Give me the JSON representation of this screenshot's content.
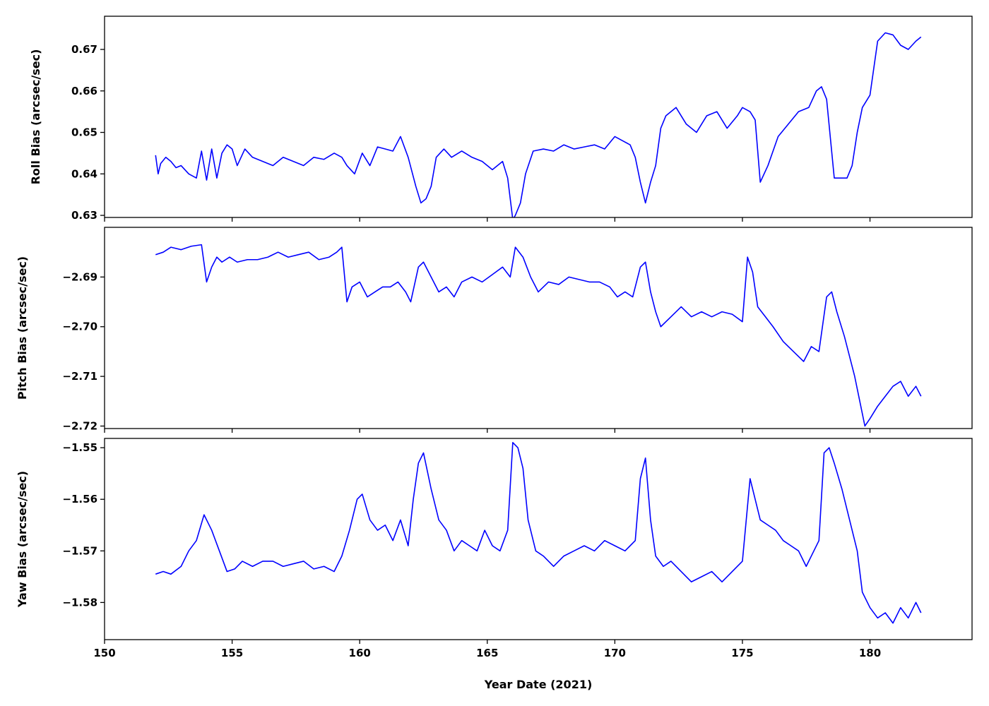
{
  "figure": {
    "xlabel": "Year Date (2021)",
    "line_color": "#0000ff"
  },
  "chart_data": [
    {
      "type": "line",
      "title": "",
      "xlabel": "",
      "ylabel": "Roll Bias (arcsec/sec)",
      "xlim": [
        150,
        184
      ],
      "ylim": [
        0.6295,
        0.678
      ],
      "xticks": [
        150,
        155,
        160,
        165,
        170,
        175,
        180
      ],
      "yticks": [
        0.63,
        0.64,
        0.65,
        0.66,
        0.67
      ],
      "ytick_labels": [
        "0.63",
        "0.64",
        "0.65",
        "0.66",
        "0.67"
      ],
      "show_xtick_labels": false,
      "grid": false,
      "series": [
        {
          "color": "#0000ff",
          "x": [
            152.0,
            152.1,
            152.2,
            152.4,
            152.6,
            152.8,
            153.0,
            153.3,
            153.6,
            153.8,
            154.0,
            154.2,
            154.4,
            154.6,
            154.8,
            155.0,
            155.2,
            155.5,
            155.8,
            156.2,
            156.6,
            157.0,
            157.4,
            157.8,
            158.2,
            158.6,
            159.0,
            159.3,
            159.5,
            159.8,
            160.1,
            160.4,
            160.7,
            161.0,
            161.3,
            161.6,
            161.9,
            162.2,
            162.4,
            162.6,
            162.8,
            163.0,
            163.3,
            163.6,
            164.0,
            164.4,
            164.8,
            165.2,
            165.6,
            165.8,
            166.0,
            166.1,
            166.3,
            166.5,
            166.8,
            167.2,
            167.6,
            168.0,
            168.4,
            168.8,
            169.2,
            169.6,
            170.0,
            170.3,
            170.6,
            170.8,
            171.0,
            171.2,
            171.4,
            171.6,
            171.8,
            172.0,
            172.4,
            172.8,
            173.2,
            173.6,
            174.0,
            174.4,
            174.8,
            175.0,
            175.3,
            175.5,
            175.7,
            176.0,
            176.4,
            176.8,
            177.2,
            177.6,
            177.9,
            178.1,
            178.3,
            178.6,
            178.9,
            179.1,
            179.3,
            179.5,
            179.7,
            180.0,
            180.3,
            180.6,
            180.9,
            181.2,
            181.5,
            181.8,
            182.0
          ],
          "y": [
            0.6445,
            0.64,
            0.6425,
            0.644,
            0.643,
            0.6415,
            0.642,
            0.64,
            0.639,
            0.6455,
            0.6385,
            0.646,
            0.639,
            0.645,
            0.647,
            0.646,
            0.642,
            0.646,
            0.644,
            0.643,
            0.642,
            0.644,
            0.643,
            0.642,
            0.644,
            0.6435,
            0.645,
            0.644,
            0.642,
            0.64,
            0.645,
            0.642,
            0.6465,
            0.646,
            0.6455,
            0.649,
            0.644,
            0.637,
            0.633,
            0.634,
            0.637,
            0.644,
            0.646,
            0.644,
            0.6455,
            0.644,
            0.643,
            0.641,
            0.643,
            0.639,
            0.629,
            0.63,
            0.633,
            0.64,
            0.6455,
            0.646,
            0.6455,
            0.647,
            0.646,
            0.6465,
            0.647,
            0.646,
            0.649,
            0.648,
            0.647,
            0.644,
            0.638,
            0.633,
            0.638,
            0.642,
            0.651,
            0.654,
            0.656,
            0.652,
            0.65,
            0.654,
            0.655,
            0.651,
            0.654,
            0.656,
            0.655,
            0.653,
            0.638,
            0.642,
            0.649,
            0.652,
            0.655,
            0.656,
            0.66,
            0.661,
            0.658,
            0.639,
            0.639,
            0.639,
            0.642,
            0.65,
            0.656,
            0.659,
            0.672,
            0.674,
            0.6735,
            0.671,
            0.67,
            0.672,
            0.673
          ]
        }
      ]
    },
    {
      "type": "line",
      "title": "",
      "xlabel": "",
      "ylabel": "Pitch Bias (arcsec/sec)",
      "xlim": [
        150,
        184
      ],
      "ylim": [
        -2.7205,
        -2.68
      ],
      "xticks": [
        150,
        155,
        160,
        165,
        170,
        175,
        180
      ],
      "yticks": [
        -2.72,
        -2.71,
        -2.7,
        -2.69
      ],
      "ytick_labels": [
        "−2.72",
        "−2.71",
        "−2.70",
        "−2.69"
      ],
      "show_xtick_labels": false,
      "grid": false,
      "series": [
        {
          "color": "#0000ff",
          "x": [
            152.0,
            152.3,
            152.6,
            153.0,
            153.4,
            153.8,
            154.0,
            154.2,
            154.4,
            154.6,
            154.9,
            155.2,
            155.6,
            156.0,
            156.4,
            156.8,
            157.2,
            157.6,
            158.0,
            158.4,
            158.8,
            159.1,
            159.3,
            159.5,
            159.7,
            160.0,
            160.3,
            160.6,
            160.9,
            161.2,
            161.5,
            161.8,
            162.0,
            162.3,
            162.5,
            162.8,
            163.1,
            163.4,
            163.7,
            164.0,
            164.4,
            164.8,
            165.2,
            165.6,
            165.9,
            166.1,
            166.4,
            166.7,
            167.0,
            167.4,
            167.8,
            168.2,
            168.6,
            169.0,
            169.4,
            169.8,
            170.1,
            170.4,
            170.7,
            171.0,
            171.2,
            171.4,
            171.6,
            171.8,
            172.2,
            172.6,
            173.0,
            173.4,
            173.8,
            174.2,
            174.6,
            175.0,
            175.2,
            175.4,
            175.6,
            175.9,
            176.2,
            176.6,
            177.0,
            177.4,
            177.7,
            178.0,
            178.3,
            178.5,
            178.7,
            179.0,
            179.2,
            179.4,
            179.6,
            179.8,
            180.0,
            180.3,
            180.6,
            180.9,
            181.2,
            181.5,
            181.8,
            182.0
          ],
          "y": [
            -2.6855,
            -2.685,
            -2.684,
            -2.6845,
            -2.6838,
            -2.6835,
            -2.691,
            -2.688,
            -2.686,
            -2.687,
            -2.686,
            -2.687,
            -2.6865,
            -2.6865,
            -2.686,
            -2.685,
            -2.686,
            -2.6855,
            -2.685,
            -2.6865,
            -2.686,
            -2.685,
            -2.684,
            -2.695,
            -2.692,
            -2.691,
            -2.694,
            -2.693,
            -2.692,
            -2.692,
            -2.691,
            -2.693,
            -2.695,
            -2.688,
            -2.687,
            -2.69,
            -2.693,
            -2.692,
            -2.694,
            -2.691,
            -2.69,
            -2.691,
            -2.6895,
            -2.688,
            -2.69,
            -2.684,
            -2.686,
            -2.69,
            -2.693,
            -2.691,
            -2.6915,
            -2.69,
            -2.6905,
            -2.691,
            -2.691,
            -2.692,
            -2.694,
            -2.693,
            -2.694,
            -2.688,
            -2.687,
            -2.693,
            -2.697,
            -2.7,
            -2.698,
            -2.696,
            -2.698,
            -2.697,
            -2.698,
            -2.697,
            -2.6975,
            -2.699,
            -2.686,
            -2.689,
            -2.696,
            -2.698,
            -2.7,
            -2.703,
            -2.705,
            -2.707,
            -2.704,
            -2.705,
            -2.694,
            -2.693,
            -2.697,
            -2.702,
            -2.706,
            -2.71,
            -2.715,
            -2.72,
            -2.7185,
            -2.716,
            -2.714,
            -2.712,
            -2.711,
            -2.714,
            -2.712,
            -2.714
          ]
        }
      ]
    },
    {
      "type": "line",
      "title": "",
      "xlabel": "Year Date (2021)",
      "ylabel": "Yaw Bias (arcsec/sec)",
      "xlim": [
        150,
        184
      ],
      "ylim": [
        -1.5872,
        -1.5482
      ],
      "xticks": [
        150,
        155,
        160,
        165,
        170,
        175,
        180
      ],
      "xtick_labels": [
        "150",
        "155",
        "160",
        "165",
        "170",
        "175",
        "180"
      ],
      "yticks": [
        -1.58,
        -1.57,
        -1.56,
        -1.55
      ],
      "ytick_labels": [
        "−1.58",
        "−1.57",
        "−1.56",
        "−1.55"
      ],
      "show_xtick_labels": true,
      "grid": false,
      "series": [
        {
          "color": "#0000ff",
          "x": [
            152.0,
            152.3,
            152.6,
            153.0,
            153.3,
            153.6,
            153.9,
            154.2,
            154.5,
            154.8,
            155.1,
            155.4,
            155.8,
            156.2,
            156.6,
            157.0,
            157.4,
            157.8,
            158.2,
            158.6,
            159.0,
            159.3,
            159.6,
            159.9,
            160.1,
            160.4,
            160.7,
            161.0,
            161.3,
            161.6,
            161.9,
            162.1,
            162.3,
            162.5,
            162.8,
            163.1,
            163.4,
            163.7,
            164.0,
            164.3,
            164.6,
            164.9,
            165.2,
            165.5,
            165.8,
            166.0,
            166.2,
            166.4,
            166.6,
            166.9,
            167.2,
            167.6,
            168.0,
            168.4,
            168.8,
            169.2,
            169.6,
            170.0,
            170.4,
            170.8,
            171.0,
            171.2,
            171.4,
            171.6,
            171.9,
            172.2,
            172.6,
            173.0,
            173.4,
            173.8,
            174.2,
            174.6,
            175.0,
            175.3,
            175.5,
            175.7,
            176.0,
            176.3,
            176.6,
            176.9,
            177.2,
            177.5,
            177.8,
            178.0,
            178.2,
            178.4,
            178.6,
            178.9,
            179.1,
            179.3,
            179.5,
            179.7,
            180.0,
            180.3,
            180.6,
            180.9,
            181.2,
            181.5,
            181.8,
            182.0
          ],
          "y": [
            -1.5745,
            -1.574,
            -1.5745,
            -1.573,
            -1.57,
            -1.568,
            -1.563,
            -1.566,
            -1.57,
            -1.574,
            -1.5735,
            -1.572,
            -1.573,
            -1.572,
            -1.572,
            -1.573,
            -1.5725,
            -1.572,
            -1.5735,
            -1.573,
            -1.574,
            -1.571,
            -1.566,
            -1.56,
            -1.559,
            -1.564,
            -1.566,
            -1.565,
            -1.568,
            -1.564,
            -1.569,
            -1.56,
            -1.553,
            -1.551,
            -1.558,
            -1.564,
            -1.566,
            -1.57,
            -1.568,
            -1.569,
            -1.57,
            -1.566,
            -1.569,
            -1.57,
            -1.566,
            -1.549,
            -1.55,
            -1.554,
            -1.564,
            -1.57,
            -1.571,
            -1.573,
            -1.571,
            -1.57,
            -1.569,
            -1.57,
            -1.568,
            -1.569,
            -1.57,
            -1.568,
            -1.556,
            -1.552,
            -1.564,
            -1.571,
            -1.573,
            -1.572,
            -1.574,
            -1.576,
            -1.575,
            -1.574,
            -1.576,
            -1.574,
            -1.572,
            -1.556,
            -1.56,
            -1.564,
            -1.565,
            -1.566,
            -1.568,
            -1.569,
            -1.57,
            -1.573,
            -1.57,
            -1.568,
            -1.551,
            -1.55,
            -1.553,
            -1.558,
            -1.562,
            -1.566,
            -1.57,
            -1.578,
            -1.581,
            -1.583,
            -1.582,
            -1.584,
            -1.581,
            -1.583,
            -1.58,
            -1.582
          ]
        }
      ]
    }
  ]
}
